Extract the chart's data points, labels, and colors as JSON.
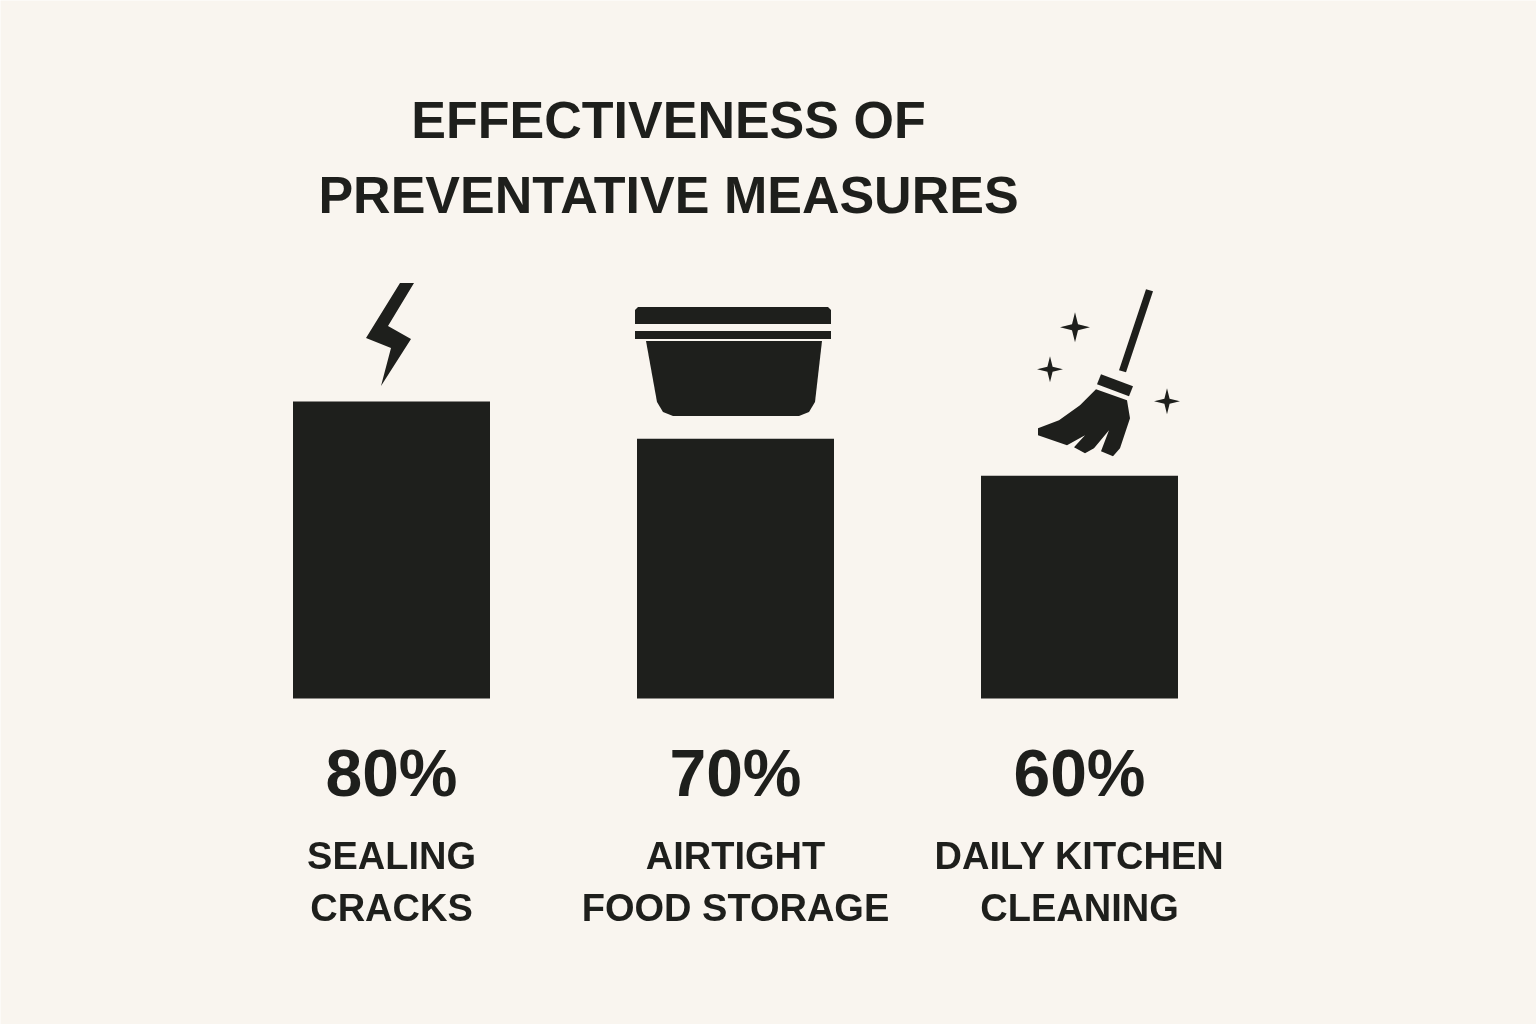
{
  "chart_data": {
    "type": "bar",
    "title": "EFFECTIVENESS OF\nPREVENTATIVE MEASURES",
    "categories": [
      "SEALING\nCRACKS",
      "AIRTIGHT\nFOOD STORAGE",
      "DAILY KITCHEN\nCLEANING"
    ],
    "values": [
      80,
      70,
      60
    ],
    "value_labels": [
      "80%",
      "70%",
      "60%"
    ],
    "color": "#1e1f1c"
  }
}
